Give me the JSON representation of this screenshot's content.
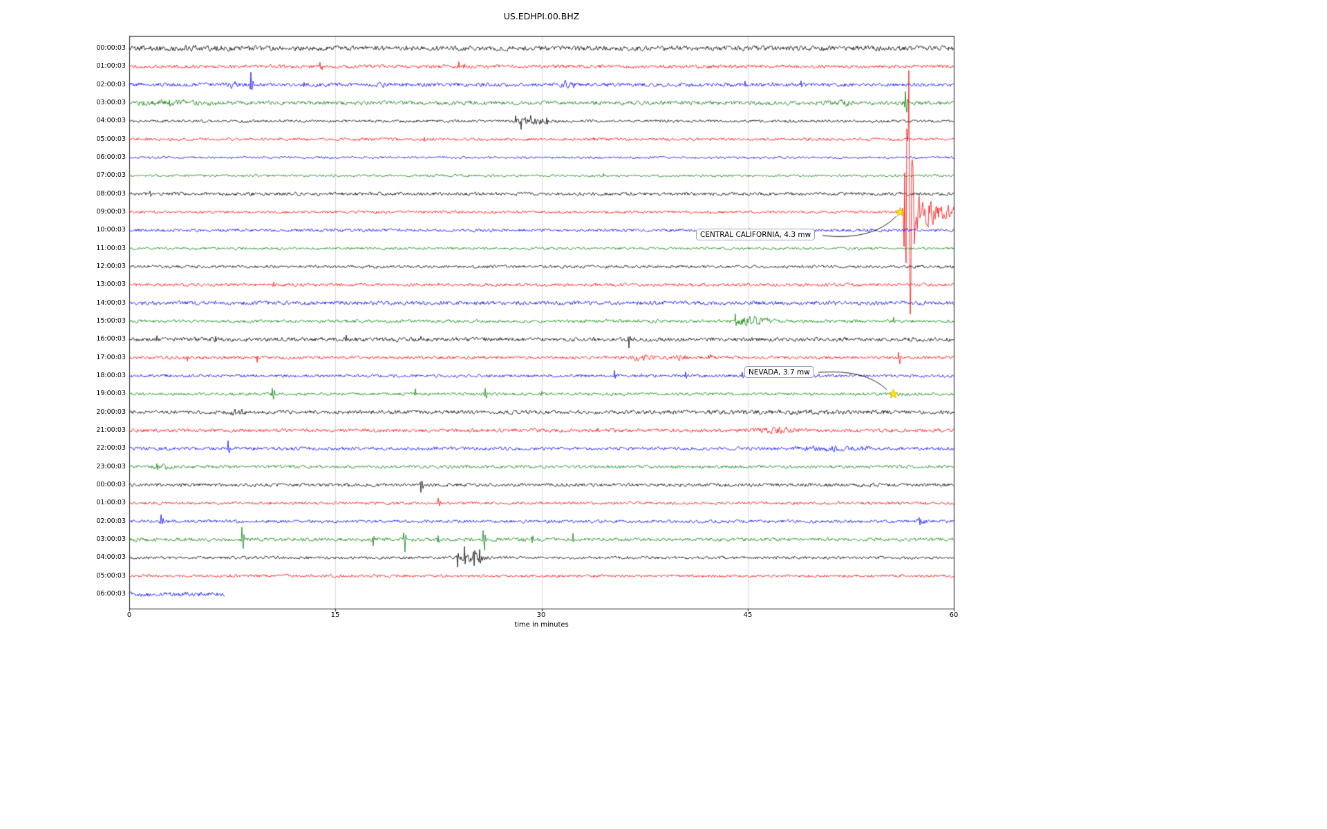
{
  "chart_data": {
    "type": "line",
    "subtype": "helicorder-seismogram",
    "title": "US.EDHPI.00.BHZ",
    "xlabel": "time in minutes",
    "xlim": [
      0,
      60
    ],
    "grid": "vertical gridlines at 15, 30, 45",
    "x_ticks": [
      {
        "label": "0",
        "value": 0
      },
      {
        "label": "15",
        "value": 15
      },
      {
        "label": "30",
        "value": 30
      },
      {
        "label": "45",
        "value": 45
      },
      {
        "label": "60",
        "value": 60
      }
    ],
    "trace_color_cycle": [
      "#000000",
      "#ff0000",
      "#0000ff",
      "#008000"
    ],
    "marker_color": "#ffe600",
    "events": [
      {
        "label": "CENTRAL CALIFORNIA, 4.3 mw",
        "row": 9,
        "trace_label": "09:00:03",
        "marker": "yellow-star",
        "marker_minute": 56.1,
        "onset_min": 56.25,
        "peak_amp": 110,
        "peak_center_offset_min": 0.5,
        "peak_sigma_min": 0.22,
        "shoulder_amp": 30,
        "shoulder_tau_min": 1.5,
        "coda_amp": 9,
        "coda_tau_min": 5,
        "extreme_spikes": [
          [
            0.5,
            -205
          ],
          [
            0.56,
            148
          ],
          [
            0.34,
            -120
          ],
          [
            0.64,
            100
          ]
        ]
      },
      {
        "label": "NEVADA, 3.7 mw",
        "row": 19,
        "trace_label": "19:00:03",
        "marker": "yellow-star",
        "marker_minute": 55.6
      }
    ],
    "rows": [
      {
        "label": "00:00:03",
        "color": "#000000",
        "amp": 3.2,
        "bursts": [
          [
            0,
            10,
            0.8
          ]
        ],
        "spikes": [
          [
            5.5,
            -4
          ]
        ]
      },
      {
        "label": "01:00:03",
        "color": "#ff0000",
        "amp": 2.2,
        "bursts": [],
        "spikes": [
          [
            13.9,
            -6
          ],
          [
            14.05,
            5
          ],
          [
            24.0,
            -5
          ],
          [
            24.4,
            -4
          ]
        ]
      },
      {
        "label": "02:00:03",
        "color": "#0000ff",
        "amp": 2.4,
        "bursts": [
          [
            7.0,
            8.0,
            2.5
          ],
          [
            17.8,
            18.8,
            3
          ],
          [
            31.2,
            32.6,
            3
          ],
          [
            46.5,
            47.2,
            1.5
          ]
        ],
        "spikes": [
          [
            8.85,
            -18
          ],
          [
            8.95,
            8
          ],
          [
            12.7,
            -6
          ],
          [
            44.8,
            -4
          ],
          [
            48.9,
            -5
          ]
        ]
      },
      {
        "label": "03:00:03",
        "color": "#008000",
        "amp": 2.6,
        "bursts": [
          [
            0,
            7,
            1.5
          ],
          [
            50.5,
            53,
            1.8
          ]
        ],
        "spikes": [
          [
            2.9,
            -5
          ],
          [
            56.5,
            -18
          ],
          [
            56.57,
            14
          ]
        ]
      },
      {
        "label": "04:00:03",
        "color": "#000000",
        "amp": 1.8,
        "bursts": [
          [
            27.8,
            30.6,
            3.5
          ]
        ],
        "spikes": [
          [
            28.1,
            -8
          ],
          [
            28.5,
            8
          ],
          [
            29.2,
            -7
          ],
          [
            30.4,
            -6
          ]
        ]
      },
      {
        "label": "05:00:03",
        "color": "#ff0000",
        "amp": 1.9,
        "bursts": [],
        "spikes": [
          [
            21.5,
            -3
          ],
          [
            33.8,
            -3
          ]
        ]
      },
      {
        "label": "06:00:03",
        "color": "#0000ff",
        "amp": 1.5,
        "bursts": [],
        "spikes": []
      },
      {
        "label": "07:00:03",
        "color": "#008000",
        "amp": 1.5,
        "bursts": [],
        "spikes": [
          [
            34.5,
            -3
          ]
        ]
      },
      {
        "label": "08:00:03",
        "color": "#000000",
        "amp": 2.2,
        "bursts": [],
        "spikes": [
          [
            1.5,
            -4
          ],
          [
            9.0,
            -3
          ]
        ]
      },
      {
        "label": "09:00:03",
        "color": "#ff0000",
        "amp": 1.8,
        "bursts": [],
        "spikes": []
      },
      {
        "label": "10:00:03",
        "color": "#0000ff",
        "amp": 2.0,
        "bursts": [],
        "spikes": []
      },
      {
        "label": "11:00:03",
        "color": "#008000",
        "amp": 1.6,
        "bursts": [],
        "spikes": []
      },
      {
        "label": "12:00:03",
        "color": "#000000",
        "amp": 1.9,
        "bursts": [],
        "spikes": []
      },
      {
        "label": "13:00:03",
        "color": "#ff0000",
        "amp": 2.0,
        "bursts": [],
        "spikes": [
          [
            10.5,
            -3
          ]
        ]
      },
      {
        "label": "14:00:03",
        "color": "#0000ff",
        "amp": 2.6,
        "bursts": [],
        "spikes": []
      },
      {
        "label": "15:00:03",
        "color": "#008000",
        "amp": 2.0,
        "bursts": [
          [
            43.6,
            47.2,
            4
          ]
        ],
        "spikes": [
          [
            44.1,
            -9
          ],
          [
            55.6,
            -4
          ]
        ]
      },
      {
        "label": "16:00:03",
        "color": "#000000",
        "amp": 2.6,
        "bursts": [],
        "spikes": [
          [
            2.0,
            -5
          ],
          [
            6.3,
            -5
          ],
          [
            15.8,
            -5
          ],
          [
            21.2,
            -4
          ],
          [
            25.9,
            5
          ],
          [
            36.35,
            12
          ],
          [
            36.45,
            -6
          ]
        ]
      },
      {
        "label": "17:00:03",
        "color": "#ff0000",
        "amp": 2.0,
        "bursts": [
          [
            36.2,
            38.6,
            3
          ],
          [
            39.7,
            40.6,
            3
          ],
          [
            41.9,
            42.6,
            2.5
          ]
        ],
        "spikes": [
          [
            4.2,
            5
          ],
          [
            9.3,
            6
          ],
          [
            56.0,
            -9
          ],
          [
            56.07,
            7
          ]
        ]
      },
      {
        "label": "18:00:03",
        "color": "#0000ff",
        "amp": 2.0,
        "bursts": [],
        "spikes": [
          [
            35.3,
            -6
          ],
          [
            40.5,
            -5
          ],
          [
            44.6,
            -4
          ]
        ]
      },
      {
        "label": "19:00:03",
        "color": "#008000",
        "amp": 1.8,
        "bursts": [],
        "spikes": [
          [
            10.4,
            -9
          ],
          [
            10.5,
            8
          ],
          [
            20.8,
            -7
          ],
          [
            25.9,
            -8
          ],
          [
            26.0,
            7
          ],
          [
            30.0,
            -4
          ],
          [
            55.6,
            -3
          ]
        ]
      },
      {
        "label": "20:00:03",
        "color": "#000000",
        "amp": 2.4,
        "bursts": [
          [
            7.0,
            8.6,
            2.5
          ],
          [
            38,
            60,
            0.8
          ]
        ],
        "spikes": []
      },
      {
        "label": "21:00:03",
        "color": "#ff0000",
        "amp": 2.2,
        "bursts": [
          [
            45.3,
            49.2,
            2.5
          ]
        ],
        "spikes": [
          [
            34.1,
            -5
          ],
          [
            39.6,
            -4
          ]
        ]
      },
      {
        "label": "22:00:03",
        "color": "#0000ff",
        "amp": 2.2,
        "bursts": [
          [
            47.5,
            54.5,
            1.8
          ]
        ],
        "spikes": [
          [
            7.2,
            -10
          ],
          [
            7.3,
            6
          ]
        ]
      },
      {
        "label": "23:00:03",
        "color": "#008000",
        "amp": 2.0,
        "bursts": [
          [
            1.3,
            3.3,
            2.5
          ]
        ],
        "spikes": [
          [
            2.0,
            -5
          ]
        ]
      },
      {
        "label": "00:00:03",
        "color": "#000000",
        "amp": 2.2,
        "bursts": [],
        "spikes": [
          [
            21.2,
            12
          ],
          [
            21.3,
            -7
          ]
        ]
      },
      {
        "label": "01:00:03",
        "color": "#ff0000",
        "amp": 1.8,
        "bursts": [],
        "spikes": [
          [
            22.5,
            -6
          ],
          [
            22.6,
            5
          ]
        ]
      },
      {
        "label": "02:00:03",
        "color": "#0000ff",
        "amp": 2.0,
        "bursts": [
          [
            57.1,
            58.2,
            2
          ]
        ],
        "spikes": [
          [
            2.3,
            -9
          ],
          [
            2.4,
            6
          ],
          [
            57.5,
            -5
          ]
        ]
      },
      {
        "label": "03:00:03",
        "color": "#008000",
        "amp": 2.2,
        "bursts": [],
        "spikes": [
          [
            8.2,
            -16
          ],
          [
            8.28,
            14
          ],
          [
            17.75,
            10
          ],
          [
            19.95,
            -10
          ],
          [
            20.05,
            16
          ],
          [
            22.5,
            -8
          ],
          [
            25.75,
            -12
          ],
          [
            25.85,
            14
          ],
          [
            29.3,
            6
          ],
          [
            32.3,
            -8
          ]
        ]
      },
      {
        "label": "04:00:03",
        "color": "#000000",
        "amp": 1.8,
        "bursts": [
          [
            23.7,
            26.4,
            4
          ]
        ],
        "spikes": [
          [
            23.9,
            14
          ],
          [
            24.4,
            -13
          ],
          [
            25.1,
            12
          ],
          [
            25.5,
            -11
          ]
        ]
      },
      {
        "label": "05:00:03",
        "color": "#ff0000",
        "amp": 1.8,
        "bursts": [],
        "spikes": []
      },
      {
        "label": "06:00:03",
        "color": "#0000ff",
        "amp": 2.8,
        "bursts": [],
        "spikes": [],
        "end_min": 6.95
      }
    ]
  }
}
